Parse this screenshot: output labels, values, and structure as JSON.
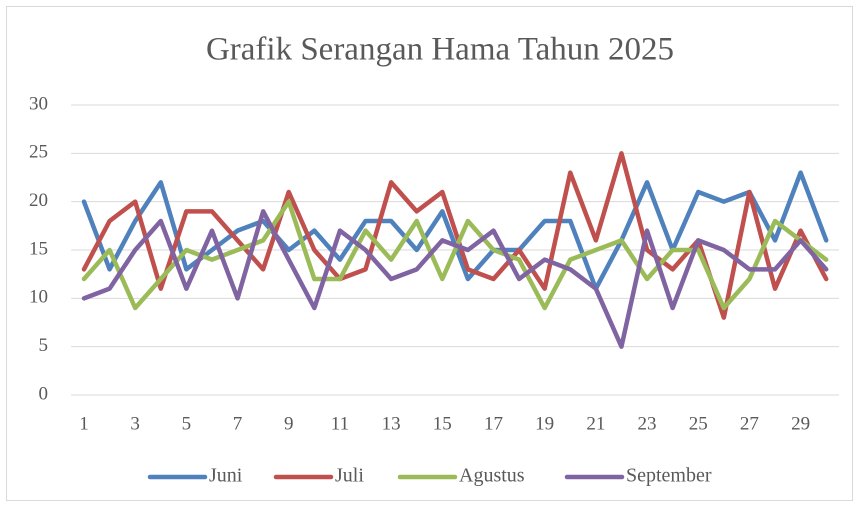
{
  "chart_data": {
    "type": "line",
    "title": "Grafik Serangan Hama Tahun 2025",
    "categories": [
      1,
      null,
      3,
      null,
      5,
      null,
      7,
      null,
      9,
      null,
      11,
      null,
      13,
      null,
      15,
      null,
      17,
      null,
      19,
      null,
      21,
      null,
      23,
      null,
      25,
      null,
      27,
      null,
      29,
      null
    ],
    "series": [
      {
        "name": "Juni",
        "color": "#4f81bd",
        "values": [
          20,
          13,
          18,
          22,
          13,
          15,
          17,
          18,
          15,
          17,
          14,
          18,
          18,
          15,
          19,
          12,
          15,
          15,
          18,
          18,
          11,
          16,
          22,
          15,
          21,
          20,
          21,
          16,
          23,
          16
        ]
      },
      {
        "name": "Juli",
        "color": "#c0504d",
        "values": [
          13,
          18,
          20,
          11,
          19,
          19,
          16,
          13,
          21,
          15,
          12,
          13,
          22,
          19,
          21,
          13,
          12,
          15,
          11,
          23,
          16,
          25,
          15,
          13,
          16,
          8,
          21,
          11,
          17,
          12
        ]
      },
      {
        "name": "Agustus",
        "color": "#9bbb59",
        "values": [
          12,
          15,
          9,
          12,
          15,
          14,
          15,
          16,
          20,
          12,
          12,
          17,
          14,
          18,
          12,
          18,
          15,
          14,
          9,
          14,
          15,
          16,
          12,
          15,
          15,
          9,
          12,
          18,
          16,
          14
        ]
      },
      {
        "name": "September",
        "color": "#8064a2",
        "values": [
          10,
          11,
          15,
          18,
          11,
          17,
          10,
          19,
          14,
          9,
          17,
          15,
          12,
          13,
          16,
          15,
          17,
          12,
          14,
          13,
          11,
          5,
          17,
          9,
          16,
          15,
          13,
          13,
          16,
          13
        ]
      }
    ],
    "ylim": [
      0,
      30
    ],
    "yticks": [
      0,
      5,
      10,
      15,
      20,
      25,
      30
    ],
    "grid": true,
    "legend": "bottom"
  }
}
